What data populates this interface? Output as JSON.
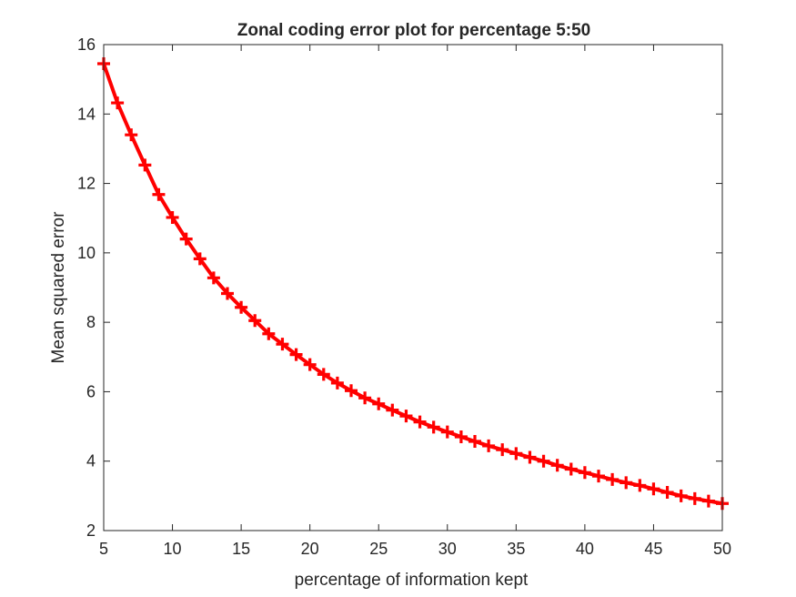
{
  "chart_data": {
    "type": "line",
    "title": "Zonal coding error plot for percentage 5:50",
    "xlabel": "percentage of information kept",
    "ylabel": "Mean squared error",
    "xlim": [
      5,
      50
    ],
    "ylim": [
      2,
      16
    ],
    "xticks": [
      5,
      10,
      15,
      20,
      25,
      30,
      35,
      40,
      45,
      50
    ],
    "yticks": [
      2,
      4,
      6,
      8,
      10,
      12,
      14,
      16
    ],
    "grid": false,
    "legend": "none",
    "series": [
      {
        "color": "#ff0000",
        "marker": "plus",
        "x": [
          5,
          6,
          7,
          8,
          9,
          10,
          11,
          12,
          13,
          14,
          15,
          16,
          17,
          18,
          19,
          20,
          21,
          22,
          23,
          24,
          25,
          26,
          27,
          28,
          29,
          30,
          31,
          32,
          33,
          34,
          35,
          36,
          37,
          38,
          39,
          40,
          41,
          42,
          43,
          44,
          45,
          46,
          47,
          48,
          49,
          50
        ],
        "y": [
          15.45,
          14.32,
          13.4,
          12.53,
          11.68,
          11.02,
          10.4,
          9.83,
          9.28,
          8.83,
          8.43,
          8.05,
          7.67,
          7.37,
          7.07,
          6.78,
          6.5,
          6.25,
          6.03,
          5.82,
          5.65,
          5.47,
          5.3,
          5.13,
          4.98,
          4.84,
          4.7,
          4.57,
          4.44,
          4.33,
          4.22,
          4.11,
          4.0,
          3.88,
          3.77,
          3.67,
          3.57,
          3.47,
          3.38,
          3.3,
          3.2,
          3.1,
          3.0,
          2.92,
          2.85,
          2.78
        ]
      }
    ]
  }
}
